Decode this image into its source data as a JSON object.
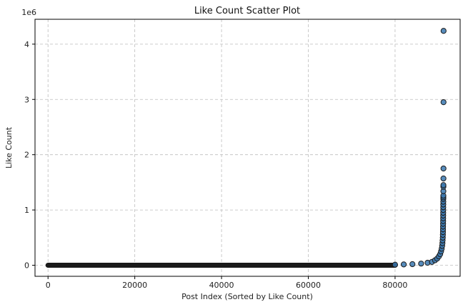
{
  "chart_data": {
    "type": "scatter",
    "title": "Like Count Scatter Plot",
    "xlabel": "Post Index (Sorted by Like Count)",
    "ylabel": "Like Count",
    "y_offset_text": "1e6",
    "xlim": [
      -3000,
      95000
    ],
    "ylim": [
      -200000,
      4450000
    ],
    "x_ticks": [
      0,
      20000,
      40000,
      60000,
      80000
    ],
    "x_tick_labels": [
      "0",
      "20000",
      "40000",
      "60000",
      "80000"
    ],
    "y_ticks": [
      0,
      1000000,
      2000000,
      3000000,
      4000000
    ],
    "y_tick_labels": [
      "0",
      "1",
      "2",
      "3",
      "4"
    ],
    "grid": true,
    "marker_color": "#3a78b0",
    "marker_edge_color": "#1a1a1a",
    "baseline": {
      "x_start": 0,
      "x_end": 80000,
      "y": 0
    },
    "points": [
      {
        "x": 80000,
        "y": 10000
      },
      {
        "x": 82000,
        "y": 15000
      },
      {
        "x": 84000,
        "y": 20000
      },
      {
        "x": 86000,
        "y": 30000
      },
      {
        "x": 87500,
        "y": 45000
      },
      {
        "x": 88500,
        "y": 60000
      },
      {
        "x": 89200,
        "y": 90000
      },
      {
        "x": 89700,
        "y": 120000
      },
      {
        "x": 90100,
        "y": 160000
      },
      {
        "x": 90400,
        "y": 200000
      },
      {
        "x": 90600,
        "y": 250000
      },
      {
        "x": 90750,
        "y": 300000
      },
      {
        "x": 90850,
        "y": 350000
      },
      {
        "x": 90920,
        "y": 400000
      },
      {
        "x": 90960,
        "y": 450000
      },
      {
        "x": 91000,
        "y": 500000
      },
      {
        "x": 91020,
        "y": 550000
      },
      {
        "x": 91040,
        "y": 600000
      },
      {
        "x": 91050,
        "y": 650000
      },
      {
        "x": 91060,
        "y": 700000
      },
      {
        "x": 91070,
        "y": 750000
      },
      {
        "x": 91080,
        "y": 800000
      },
      {
        "x": 91085,
        "y": 850000
      },
      {
        "x": 91090,
        "y": 900000
      },
      {
        "x": 91095,
        "y": 950000
      },
      {
        "x": 91100,
        "y": 1000000
      },
      {
        "x": 91105,
        "y": 1050000
      },
      {
        "x": 91110,
        "y": 1100000
      },
      {
        "x": 91115,
        "y": 1150000
      },
      {
        "x": 91120,
        "y": 1200000
      },
      {
        "x": 91125,
        "y": 1230000
      },
      {
        "x": 91130,
        "y": 1260000
      },
      {
        "x": 91135,
        "y": 1340000
      },
      {
        "x": 91140,
        "y": 1420000
      },
      {
        "x": 91145,
        "y": 1450000
      },
      {
        "x": 91150,
        "y": 1570000
      },
      {
        "x": 91160,
        "y": 1750000
      },
      {
        "x": 91170,
        "y": 2950000
      },
      {
        "x": 91180,
        "y": 4240000
      }
    ]
  }
}
